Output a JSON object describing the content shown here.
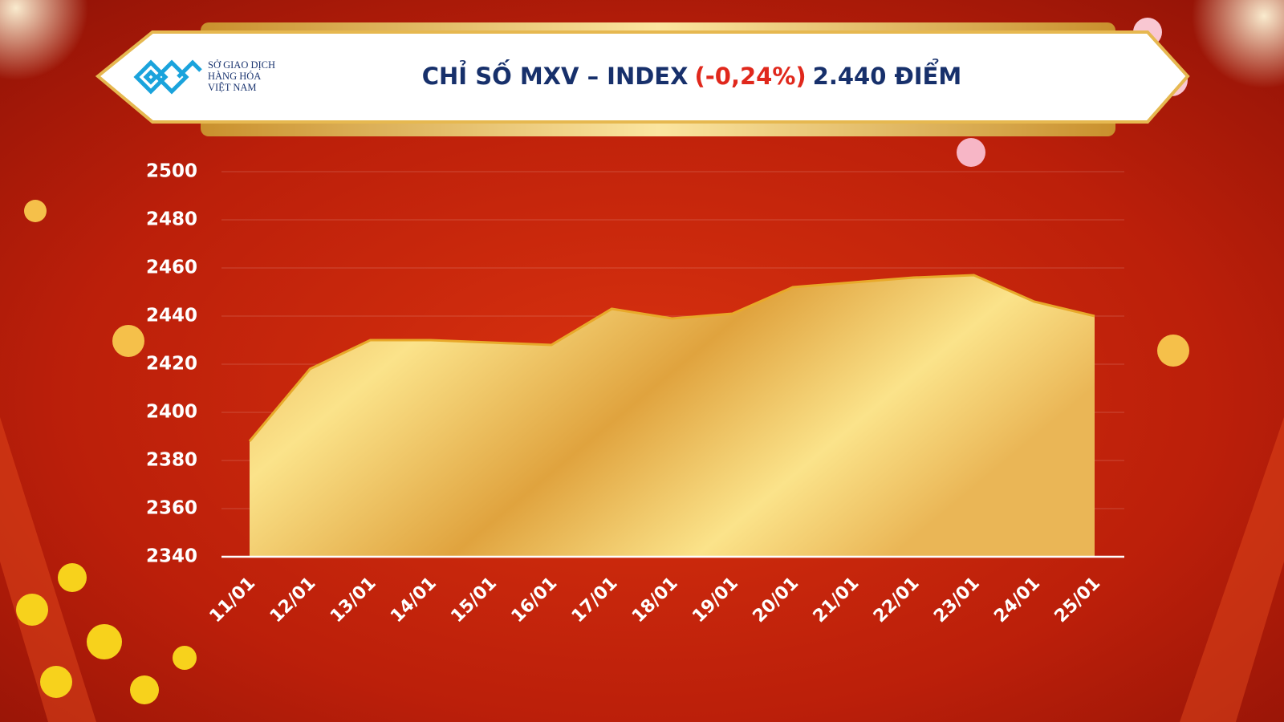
{
  "header": {
    "logo_lines": [
      "SỞ GIAO DỊCH",
      "HÀNG HÓA",
      "VIỆT NAM"
    ]
  },
  "chart_data": {
    "type": "area",
    "title": [
      "CHỈ SỐ MXV – INDEX",
      "(-0,24%)",
      "2.440 ĐIỂM"
    ],
    "categories": [
      "11/01",
      "12/01",
      "13/01",
      "14/01",
      "15/01",
      "16/01",
      "17/01",
      "18/01",
      "19/01",
      "20/01",
      "21/01",
      "22/01",
      "23/01",
      "24/01",
      "25/01"
    ],
    "values": [
      2388,
      2418,
      2430,
      2430,
      2429,
      2428,
      2443,
      2439,
      2441,
      2452,
      2454,
      2456,
      2457,
      2446,
      2440
    ],
    "color": "#e8a92a",
    "ylim": [
      2340,
      2500
    ],
    "yticks": [
      2340,
      2360,
      2380,
      2400,
      2420,
      2440,
      2460,
      2480,
      2500
    ],
    "grid": true
  }
}
